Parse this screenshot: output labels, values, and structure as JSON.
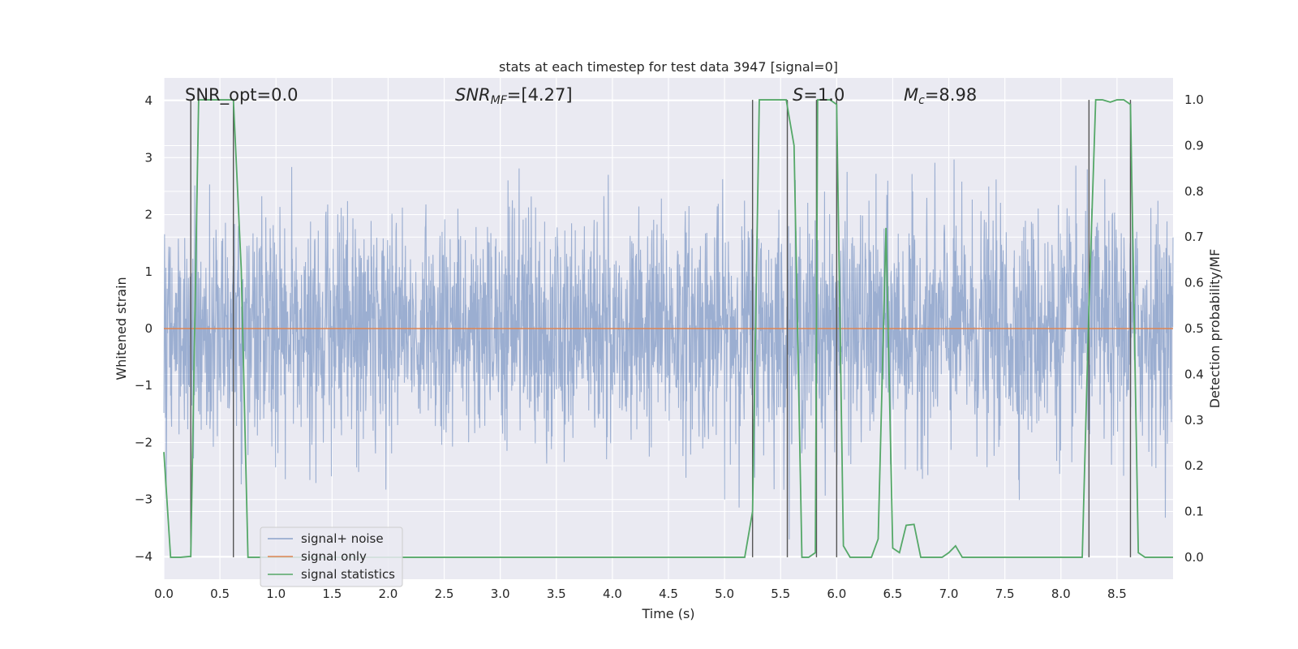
{
  "chart_data": {
    "type": "line",
    "title": "stats at each timestep for test data 3947 [signal=0]",
    "xlabel": "Time (s)",
    "ylabel": "Whitened strain",
    "y2label": "Detection probability/MF",
    "xlim": [
      0.0,
      9.0
    ],
    "ylim": [
      -4.4,
      4.4
    ],
    "y2lim": [
      -0.048,
      1.048
    ],
    "x_ticks": [
      "0.0",
      "0.5",
      "1.0",
      "1.5",
      "2.0",
      "2.5",
      "3.0",
      "3.5",
      "4.0",
      "4.5",
      "5.0",
      "5.5",
      "6.0",
      "6.5",
      "7.0",
      "7.5",
      "8.0",
      "8.5"
    ],
    "x_tick_values": [
      0,
      0.5,
      1,
      1.5,
      2,
      2.5,
      3,
      3.5,
      4,
      4.5,
      5,
      5.5,
      6,
      6.5,
      7,
      7.5,
      8,
      8.5
    ],
    "y_ticks": [
      "4",
      "3",
      "2",
      "1",
      "0",
      "−1",
      "−2",
      "−3",
      "−4"
    ],
    "y_tick_values": [
      4,
      3,
      2,
      1,
      0,
      -1,
      -2,
      -3,
      -4
    ],
    "y2_ticks": [
      "1.0",
      "0.9",
      "0.8",
      "0.7",
      "0.6",
      "0.5",
      "0.4",
      "0.3",
      "0.2",
      "0.1",
      "0.0"
    ],
    "y2_tick_values": [
      1.0,
      0.9,
      0.8,
      0.7,
      0.6,
      0.5,
      0.4,
      0.3,
      0.2,
      0.1,
      0.0
    ],
    "annotations": [
      {
        "name": "snr-opt",
        "x": 0.2,
        "text": "SNR_opt=0.0",
        "italic": false
      },
      {
        "name": "snr-mf",
        "x": 2.6,
        "text": "SNR_MF=[4.27]",
        "italic": true
      },
      {
        "name": "s-value",
        "x": 5.62,
        "text": "S=1.0",
        "italic": true
      },
      {
        "name": "mc-value",
        "x": 6.62,
        "text": "M_c=8.98",
        "italic": true
      }
    ],
    "annotation_parts": {
      "snr_mf_base": "SNR",
      "snr_mf_sub": "MF",
      "snr_mf_rest": "=[4.27]",
      "s_base": "S",
      "s_rest": "=1.0",
      "mc_base": "M",
      "mc_sub": "c",
      "mc_rest": "=8.98"
    },
    "legend": {
      "location": "lower-left",
      "entries": [
        "signal+ noise",
        "signal only",
        "signal statistics"
      ]
    },
    "series": [
      {
        "name": "signal+ noise",
        "axis": "left",
        "style": "noise-band",
        "color": "#4c72b0",
        "opacity": 0.5,
        "noise_sigma": 1.0,
        "noise_peak_max": 3.85,
        "noise_trough_min": -3.7
      },
      {
        "name": "signal only",
        "axis": "left",
        "color": "#dd8452",
        "x": [
          0.0,
          9.0
        ],
        "y": [
          0.0,
          0.0
        ]
      },
      {
        "name": "signal statistics",
        "axis": "right",
        "color": "#55a868",
        "x": [
          0.0,
          0.06,
          0.15,
          0.24,
          0.31,
          0.37,
          0.47,
          0.58,
          0.62,
          0.69,
          0.75,
          0.85,
          1.0,
          2.0,
          3.0,
          4.0,
          5.0,
          5.18,
          5.25,
          5.31,
          5.4,
          5.5,
          5.55,
          5.62,
          5.69,
          5.75,
          5.81,
          5.83,
          5.94,
          6.0,
          6.06,
          6.12,
          6.25,
          6.31,
          6.37,
          6.44,
          6.5,
          6.56,
          6.62,
          6.69,
          6.75,
          6.81,
          6.87,
          6.94,
          7.0,
          7.06,
          7.12,
          7.25,
          7.5,
          8.0,
          8.19,
          8.25,
          8.31,
          8.37,
          8.44,
          8.5,
          8.56,
          8.62,
          8.69,
          8.75,
          8.87,
          9.0
        ],
        "y": [
          0.23,
          0.0,
          0.0,
          0.002,
          1.0,
          1.0,
          1.0,
          1.0,
          1.0,
          0.63,
          0.0,
          0.0,
          0.0,
          0.0,
          0.0,
          0.0,
          0.0,
          0.0,
          0.1,
          1.0,
          1.0,
          1.0,
          1.0,
          0.9,
          0.0,
          0.0,
          0.01,
          1.0,
          1.0,
          0.99,
          0.025,
          0.0,
          0.0,
          0.0,
          0.04,
          0.72,
          0.02,
          0.01,
          0.07,
          0.072,
          0.0,
          0.0,
          0.0,
          0.0,
          0.01,
          0.025,
          0.0,
          0.0,
          0.0,
          0.0,
          0.0,
          0.55,
          1.0,
          1.0,
          0.995,
          1.0,
          1.0,
          0.99,
          0.01,
          0.0,
          0.0,
          0.0
        ]
      }
    ],
    "vlines": {
      "color": "#555555",
      "ymin": 0.0,
      "ymax": 1.0,
      "x": [
        0.24,
        0.62,
        5.25,
        5.56,
        5.82,
        6.0,
        8.25,
        8.62
      ]
    }
  }
}
